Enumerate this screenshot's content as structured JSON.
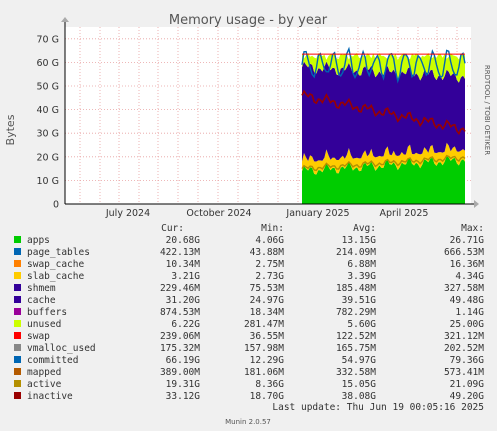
{
  "chart_data": {
    "type": "area",
    "title": "Memory usage - by year",
    "ylabel": "Bytes",
    "side_label": "RRDTOOL / TOBI OETIKER",
    "ylim": [
      0,
      75
    ],
    "yticks": [
      "0",
      "10 G",
      "20 G",
      "30 G",
      "40 G",
      "50 G",
      "60 G",
      "70 G"
    ],
    "xtick_labels": [
      "July 2024",
      "October 2024",
      "January 2025",
      "April 2025"
    ],
    "data_start_label": "January 2025",
    "grid": true,
    "colors": {
      "apps": "#00cc00",
      "page_tables": "#0066b3",
      "swap_cache": "#ff8000",
      "slab_cache": "#ffcc00",
      "shmem": "#330099",
      "cache": "#330099",
      "buffers": "#990099",
      "unused": "#ccff00",
      "swap": "#ff0000",
      "vmalloc_used": "#888888",
      "committed": "#0066b3",
      "mapped": "#b35a00",
      "active": "#b38f00",
      "inactive": "#990000"
    },
    "series_in_gb": {
      "apps_level": 14,
      "slab_swap_page_top": 19,
      "cache_top": 58,
      "unused_top": 64,
      "committed_level": 56,
      "inactive_level": 38,
      "active_level": 15
    }
  },
  "legend": {
    "header": {
      "cur": "Cur:",
      "min": "Min:",
      "avg": "Avg:",
      "max": "Max:"
    },
    "rows": [
      {
        "name": "apps",
        "color": "#00cc00",
        "cur": "20.68G",
        "min": "4.06G",
        "avg": "13.15G",
        "max": "26.71G"
      },
      {
        "name": "page_tables",
        "color": "#0066b3",
        "cur": "422.13M",
        "min": "43.88M",
        "avg": "214.09M",
        "max": "666.53M"
      },
      {
        "name": "swap_cache",
        "color": "#ff8000",
        "cur": "10.34M",
        "min": "2.75M",
        "avg": "6.88M",
        "max": "16.36M"
      },
      {
        "name": "slab_cache",
        "color": "#ffcc00",
        "cur": "3.21G",
        "min": "2.73G",
        "avg": "3.39G",
        "max": "4.34G"
      },
      {
        "name": "shmem",
        "color": "#330099",
        "cur": "229.46M",
        "min": "75.53M",
        "avg": "185.48M",
        "max": "327.58M"
      },
      {
        "name": "cache",
        "color": "#330099",
        "cur": "31.20G",
        "min": "24.97G",
        "avg": "39.51G",
        "max": "49.48G"
      },
      {
        "name": "buffers",
        "color": "#990099",
        "cur": "874.53M",
        "min": "18.34M",
        "avg": "782.29M",
        "max": "1.14G"
      },
      {
        "name": "unused",
        "color": "#ccff00",
        "cur": "6.22G",
        "min": "281.47M",
        "avg": "5.60G",
        "max": "25.00G"
      },
      {
        "name": "swap",
        "color": "#ff0000",
        "cur": "239.06M",
        "min": "36.55M",
        "avg": "122.52M",
        "max": "321.12M"
      },
      {
        "name": "vmalloc_used",
        "color": "#888888",
        "cur": "175.32M",
        "min": "157.98M",
        "avg": "165.75M",
        "max": "202.52M"
      },
      {
        "name": "committed",
        "color": "#0066b3",
        "cur": "66.19G",
        "min": "12.29G",
        "avg": "54.97G",
        "max": "79.36G"
      },
      {
        "name": "mapped",
        "color": "#b35a00",
        "cur": "389.00M",
        "min": "181.06M",
        "avg": "332.58M",
        "max": "573.41M"
      },
      {
        "name": "active",
        "color": "#b38f00",
        "cur": "19.31G",
        "min": "8.36G",
        "avg": "15.05G",
        "max": "21.09G"
      },
      {
        "name": "inactive",
        "color": "#990000",
        "cur": "33.12G",
        "min": "18.70G",
        "avg": "38.08G",
        "max": "49.20G"
      }
    ]
  },
  "last_update": "Last update: Thu Jun 19 00:05:16 2025",
  "footer": "Munin 2.0.57"
}
